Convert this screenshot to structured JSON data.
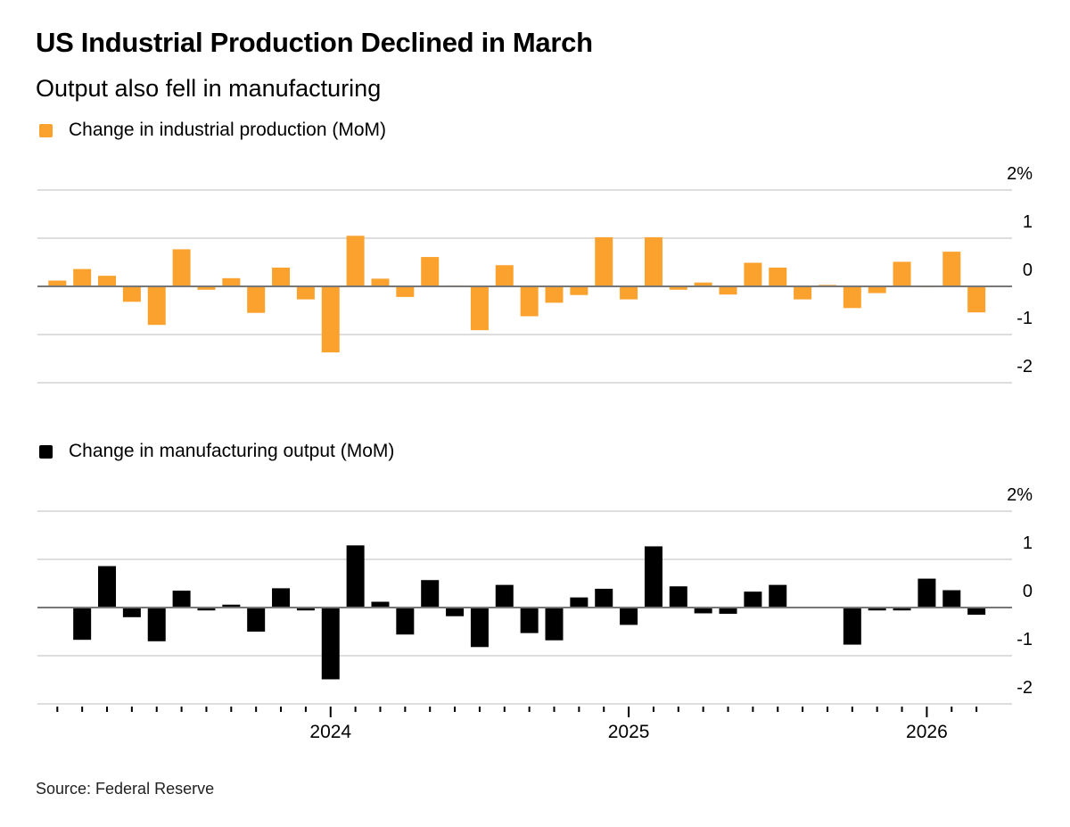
{
  "title": "US Industrial Production Declined in March",
  "subtitle": "Output also fell in manufacturing",
  "source": "Source: Federal Reserve",
  "colors": {
    "industrial": "#fba22e",
    "manufacturing": "#000000",
    "grid": "#dddddd",
    "zero": "#777777"
  },
  "chart_data": [
    {
      "type": "bar",
      "legend": "Change in industrial production (MoM)",
      "x_start": "2023-02",
      "x_end": "2026-03",
      "frequency": "monthly",
      "ylim": [
        -2,
        2
      ],
      "yticks": [
        "2%",
        "1",
        "0",
        "-1",
        "-2"
      ],
      "grid": true,
      "values": [
        0.12,
        0.36,
        0.22,
        -0.32,
        -0.8,
        0.77,
        -0.07,
        0.17,
        -0.55,
        0.39,
        -0.27,
        -1.37,
        1.05,
        0.16,
        -0.22,
        0.61,
        0.02,
        -0.91,
        0.44,
        -0.62,
        -0.34,
        -0.18,
        1.02,
        -0.27,
        1.02,
        -0.07,
        0.08,
        -0.17,
        0.49,
        0.39,
        -0.27,
        0.03,
        -0.45,
        -0.14,
        0.51,
        -0.02,
        0.72,
        -0.54
      ]
    },
    {
      "type": "bar",
      "legend": "Change in manufacturing output (MoM)",
      "x_start": "2023-02",
      "x_end": "2026-03",
      "frequency": "monthly",
      "ylim": [
        -2,
        2
      ],
      "yticks": [
        "2%",
        "1",
        "0",
        "-1",
        "-2"
      ],
      "xtick_labels": [
        "2024",
        "2025",
        "2026"
      ],
      "grid": true,
      "values": [
        0.01,
        -0.67,
        0.86,
        -0.2,
        -0.7,
        0.35,
        -0.06,
        0.06,
        -0.5,
        0.4,
        -0.06,
        -1.49,
        1.29,
        0.12,
        -0.56,
        0.57,
        -0.18,
        -0.82,
        0.47,
        -0.53,
        -0.68,
        0.21,
        0.39,
        -0.36,
        1.27,
        0.44,
        -0.12,
        -0.13,
        0.33,
        0.47,
        -0.01,
        0.0,
        -0.77,
        -0.06,
        -0.06,
        0.6,
        0.36,
        -0.15
      ]
    }
  ]
}
